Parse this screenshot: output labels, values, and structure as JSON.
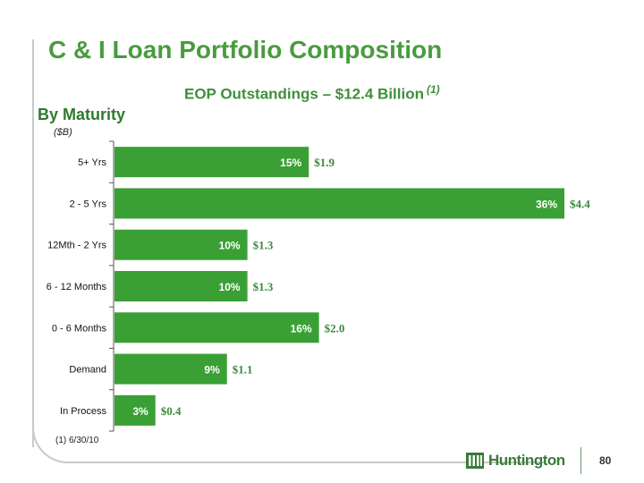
{
  "title": "C & I Loan Portfolio Composition",
  "subtitle": "EOP Outstandings – $12.4 Billion",
  "subtitle_note": "(1)",
  "section_label": "By Maturity",
  "unit_label": "($B)",
  "footnote": "(1)  6/30/10",
  "logo_text": "Huntington",
  "page_number": "80",
  "colors": {
    "bar": "#3aa035",
    "brand_text": "#4a9b3f",
    "value_text": "#3a8a3a"
  },
  "chart_data": {
    "type": "bar",
    "orientation": "horizontal",
    "categories": [
      "5+ Yrs",
      "2 - 5 Yrs",
      "12Mth - 2 Yrs",
      "6 - 12 Months",
      "0 - 6 Months",
      "Demand",
      "In Process"
    ],
    "values": [
      1.9,
      4.4,
      1.3,
      1.3,
      2.0,
      1.1,
      0.4
    ],
    "value_labels": [
      "$1.9",
      "$4.4",
      "$1.3",
      "$1.3",
      "$2.0",
      "$1.1",
      "$0.4"
    ],
    "percent_labels": [
      "15%",
      "36%",
      "10%",
      "10%",
      "16%",
      "9%",
      "3%"
    ],
    "grid": false,
    "legend": "none"
  }
}
